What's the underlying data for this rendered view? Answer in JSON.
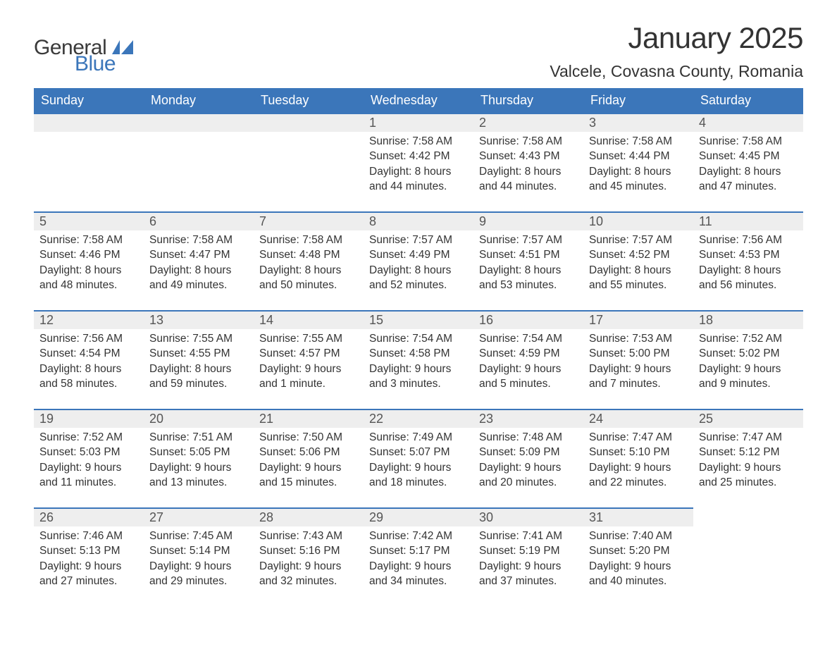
{
  "logo": {
    "general": "General",
    "blue": "Blue"
  },
  "title": "January 2025",
  "location": "Valcele, Covasna County, Romania",
  "colors": {
    "brand_blue": "#3b76ba",
    "header_text": "#ffffff",
    "day_band": "#eeeeee",
    "body_text": "#333333",
    "daynum_text": "#555555",
    "rule": "#3b76ba",
    "background": "#ffffff"
  },
  "typography": {
    "title_fontsize": 42,
    "location_fontsize": 23,
    "weekday_fontsize": 18,
    "daynum_fontsize": 18,
    "body_fontsize": 15.5,
    "logo_fontsize": 30
  },
  "weekdays": [
    "Sunday",
    "Monday",
    "Tuesday",
    "Wednesday",
    "Thursday",
    "Friday",
    "Saturday"
  ],
  "weeks": [
    [
      {
        "empty": true
      },
      {
        "empty": true
      },
      {
        "empty": true
      },
      {
        "day": 1,
        "sunrise": "7:58 AM",
        "sunset": "4:42 PM",
        "daylight": "8 hours and 44 minutes."
      },
      {
        "day": 2,
        "sunrise": "7:58 AM",
        "sunset": "4:43 PM",
        "daylight": "8 hours and 44 minutes."
      },
      {
        "day": 3,
        "sunrise": "7:58 AM",
        "sunset": "4:44 PM",
        "daylight": "8 hours and 45 minutes."
      },
      {
        "day": 4,
        "sunrise": "7:58 AM",
        "sunset": "4:45 PM",
        "daylight": "8 hours and 47 minutes."
      }
    ],
    [
      {
        "day": 5,
        "sunrise": "7:58 AM",
        "sunset": "4:46 PM",
        "daylight": "8 hours and 48 minutes."
      },
      {
        "day": 6,
        "sunrise": "7:58 AM",
        "sunset": "4:47 PM",
        "daylight": "8 hours and 49 minutes."
      },
      {
        "day": 7,
        "sunrise": "7:58 AM",
        "sunset": "4:48 PM",
        "daylight": "8 hours and 50 minutes."
      },
      {
        "day": 8,
        "sunrise": "7:57 AM",
        "sunset": "4:49 PM",
        "daylight": "8 hours and 52 minutes."
      },
      {
        "day": 9,
        "sunrise": "7:57 AM",
        "sunset": "4:51 PM",
        "daylight": "8 hours and 53 minutes."
      },
      {
        "day": 10,
        "sunrise": "7:57 AM",
        "sunset": "4:52 PM",
        "daylight": "8 hours and 55 minutes."
      },
      {
        "day": 11,
        "sunrise": "7:56 AM",
        "sunset": "4:53 PM",
        "daylight": "8 hours and 56 minutes."
      }
    ],
    [
      {
        "day": 12,
        "sunrise": "7:56 AM",
        "sunset": "4:54 PM",
        "daylight": "8 hours and 58 minutes."
      },
      {
        "day": 13,
        "sunrise": "7:55 AM",
        "sunset": "4:55 PM",
        "daylight": "8 hours and 59 minutes."
      },
      {
        "day": 14,
        "sunrise": "7:55 AM",
        "sunset": "4:57 PM",
        "daylight": "9 hours and 1 minute."
      },
      {
        "day": 15,
        "sunrise": "7:54 AM",
        "sunset": "4:58 PM",
        "daylight": "9 hours and 3 minutes."
      },
      {
        "day": 16,
        "sunrise": "7:54 AM",
        "sunset": "4:59 PM",
        "daylight": "9 hours and 5 minutes."
      },
      {
        "day": 17,
        "sunrise": "7:53 AM",
        "sunset": "5:00 PM",
        "daylight": "9 hours and 7 minutes."
      },
      {
        "day": 18,
        "sunrise": "7:52 AM",
        "sunset": "5:02 PM",
        "daylight": "9 hours and 9 minutes."
      }
    ],
    [
      {
        "day": 19,
        "sunrise": "7:52 AM",
        "sunset": "5:03 PM",
        "daylight": "9 hours and 11 minutes."
      },
      {
        "day": 20,
        "sunrise": "7:51 AM",
        "sunset": "5:05 PM",
        "daylight": "9 hours and 13 minutes."
      },
      {
        "day": 21,
        "sunrise": "7:50 AM",
        "sunset": "5:06 PM",
        "daylight": "9 hours and 15 minutes."
      },
      {
        "day": 22,
        "sunrise": "7:49 AM",
        "sunset": "5:07 PM",
        "daylight": "9 hours and 18 minutes."
      },
      {
        "day": 23,
        "sunrise": "7:48 AM",
        "sunset": "5:09 PM",
        "daylight": "9 hours and 20 minutes."
      },
      {
        "day": 24,
        "sunrise": "7:47 AM",
        "sunset": "5:10 PM",
        "daylight": "9 hours and 22 minutes."
      },
      {
        "day": 25,
        "sunrise": "7:47 AM",
        "sunset": "5:12 PM",
        "daylight": "9 hours and 25 minutes."
      }
    ],
    [
      {
        "day": 26,
        "sunrise": "7:46 AM",
        "sunset": "5:13 PM",
        "daylight": "9 hours and 27 minutes."
      },
      {
        "day": 27,
        "sunrise": "7:45 AM",
        "sunset": "5:14 PM",
        "daylight": "9 hours and 29 minutes."
      },
      {
        "day": 28,
        "sunrise": "7:43 AM",
        "sunset": "5:16 PM",
        "daylight": "9 hours and 32 minutes."
      },
      {
        "day": 29,
        "sunrise": "7:42 AM",
        "sunset": "5:17 PM",
        "daylight": "9 hours and 34 minutes."
      },
      {
        "day": 30,
        "sunrise": "7:41 AM",
        "sunset": "5:19 PM",
        "daylight": "9 hours and 37 minutes."
      },
      {
        "day": 31,
        "sunrise": "7:40 AM",
        "sunset": "5:20 PM",
        "daylight": "9 hours and 40 minutes."
      },
      {
        "empty_trailing": true
      }
    ]
  ],
  "labels": {
    "sunrise": "Sunrise:",
    "sunset": "Sunset:",
    "daylight": "Daylight:"
  }
}
